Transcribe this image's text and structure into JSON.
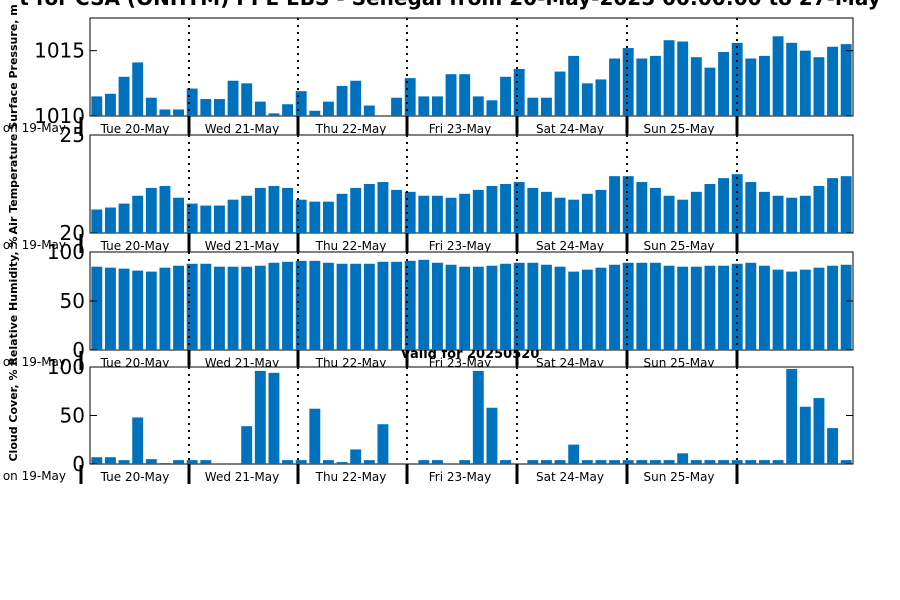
{
  "title": "t for CSA (ONHTM) PPE EBS  - Senegal from 20-May-2025 00:00:00 to 27-May",
  "valid_label": "Valid for 20250520",
  "start_label": "on 19-May",
  "day_labels": [
    "Tue 20-May",
    "Wed 21-May",
    "Thu 22-May",
    "Fri 23-May",
    "Sat 24-May",
    "Sun 25-May"
  ],
  "bar_color": "#0072BD",
  "chart_data": [
    {
      "type": "bar",
      "ylabel": "Surface Pressure, m",
      "ylim": [
        1010,
        1017.5
      ],
      "yticks": [
        1010,
        1015
      ],
      "x": [
        0,
        1,
        2,
        3,
        4,
        5,
        6,
        7,
        8,
        9,
        10,
        11,
        12,
        13,
        14,
        15,
        16,
        17,
        18,
        19,
        20,
        21,
        22,
        23,
        24,
        25,
        26,
        27,
        28,
        29,
        30,
        31,
        32,
        33,
        34,
        35,
        36,
        37,
        38,
        39,
        40,
        41,
        42,
        43,
        44,
        45,
        46,
        47,
        48,
        49,
        50,
        51,
        52,
        53,
        54,
        55
      ],
      "values": [
        1011.5,
        1011.7,
        1013,
        1014.1,
        1011.4,
        1010.5,
        1010.5,
        1012.1,
        1011.3,
        1011.3,
        1012.7,
        1012.5,
        1011.1,
        1010.2,
        1010.9,
        1011.9,
        1010.4,
        1011.1,
        1012.3,
        1012.7,
        1010.8,
        1010,
        1011.4,
        1012.9,
        1011.5,
        1011.5,
        1013.2,
        1013.2,
        1011.5,
        1011.2,
        1013,
        1013.6,
        1011.4,
        1011.4,
        1013.4,
        1014.6,
        1012.5,
        1012.8,
        1014.4,
        1015.2,
        1014.4,
        1014.6,
        1015.8,
        1015.7,
        1014.5,
        1013.7,
        1014.9,
        1015.6,
        1014.4,
        1014.6,
        1016.1,
        1015.6,
        1015,
        1014.5,
        1015.3,
        1015.5
      ]
    },
    {
      "type": "bar",
      "ylabel": "Air Temperature",
      "ylim": [
        20,
        25
      ],
      "yticks": [
        20,
        25
      ],
      "x": [
        0,
        1,
        2,
        3,
        4,
        5,
        6,
        7,
        8,
        9,
        10,
        11,
        12,
        13,
        14,
        15,
        16,
        17,
        18,
        19,
        20,
        21,
        22,
        23,
        24,
        25,
        26,
        27,
        28,
        29,
        30,
        31,
        32,
        33,
        34,
        35,
        36,
        37,
        38,
        39,
        40,
        41,
        42,
        43,
        44,
        45,
        46,
        47,
        48,
        49,
        50,
        51,
        52,
        53,
        54,
        55
      ],
      "values": [
        21.2,
        21.3,
        21.5,
        21.9,
        22.3,
        22.4,
        21.8,
        21.5,
        21.4,
        21.4,
        21.7,
        21.9,
        22.3,
        22.4,
        22.3,
        21.7,
        21.6,
        21.6,
        22,
        22.3,
        22.5,
        22.6,
        22.2,
        22.1,
        21.9,
        21.9,
        21.8,
        22,
        22.2,
        22.4,
        22.5,
        22.6,
        22.3,
        22.1,
        21.8,
        21.7,
        22.0,
        22.2,
        22.9,
        22.9,
        22.6,
        22.3,
        21.9,
        21.7,
        22.1,
        22.5,
        22.8,
        23.0,
        22.6,
        22.1,
        21.9,
        21.8,
        21.9,
        22.4,
        22.8,
        22.9
      ]
    },
    {
      "type": "bar",
      "ylabel": "Relative Humidity, %",
      "ylim": [
        0,
        100
      ],
      "yticks": [
        0,
        50,
        100
      ],
      "x": [
        0,
        1,
        2,
        3,
        4,
        5,
        6,
        7,
        8,
        9,
        10,
        11,
        12,
        13,
        14,
        15,
        16,
        17,
        18,
        19,
        20,
        21,
        22,
        23,
        24,
        25,
        26,
        27,
        28,
        29,
        30,
        31,
        32,
        33,
        34,
        35,
        36,
        37,
        38,
        39,
        40,
        41,
        42,
        43,
        44,
        45,
        46,
        47,
        48,
        49,
        50,
        51,
        52,
        53,
        54,
        55
      ],
      "values": [
        85,
        84,
        83,
        81,
        80,
        84,
        86,
        88,
        88,
        85,
        85,
        85,
        86,
        89,
        90,
        91,
        91,
        89,
        88,
        88,
        88,
        90,
        90,
        91,
        92,
        89,
        87,
        85,
        85,
        86,
        88,
        89,
        89,
        87,
        85,
        80,
        82,
        84,
        87,
        89,
        89,
        89,
        86,
        85,
        85,
        86,
        86,
        88,
        89,
        86,
        82,
        80,
        82,
        84,
        86,
        87
      ]
    },
    {
      "type": "bar",
      "ylabel": "Cloud Cover, %",
      "ylim": [
        0,
        100
      ],
      "yticks": [
        0,
        50,
        100
      ],
      "x": [
        0,
        1,
        2,
        3,
        4,
        5,
        6,
        7,
        8,
        9,
        10,
        11,
        12,
        13,
        14,
        15,
        16,
        17,
        18,
        19,
        20,
        21,
        22,
        23,
        24,
        25,
        26,
        27,
        28,
        29,
        30,
        31,
        32,
        33,
        34,
        35,
        36,
        37,
        38,
        39,
        40,
        41,
        42,
        43,
        44,
        45,
        46,
        47,
        48,
        49,
        50,
        51,
        52,
        53,
        54,
        55
      ],
      "values": [
        7,
        7,
        4,
        48,
        5,
        1,
        4,
        4,
        4,
        0,
        0,
        39,
        96,
        94,
        4,
        4,
        57,
        4,
        2,
        15,
        4,
        41,
        0,
        0,
        4,
        4,
        0,
        4,
        96,
        58,
        4,
        0,
        4,
        4,
        4,
        20,
        4,
        4,
        4,
        4,
        4,
        4,
        4,
        11,
        4,
        4,
        4,
        4,
        4,
        4,
        4,
        98,
        59,
        68,
        37,
        4
      ]
    }
  ]
}
